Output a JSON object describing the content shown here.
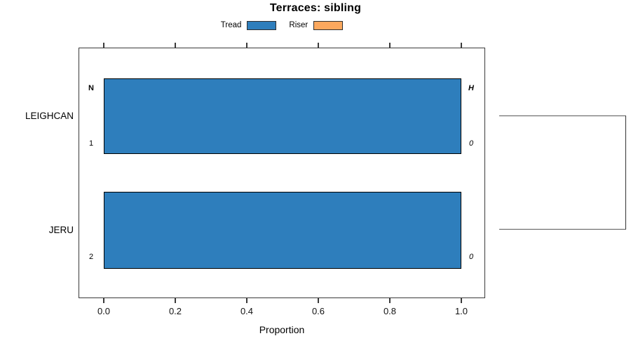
{
  "title": "Terraces: sibling",
  "legend": {
    "items": [
      {
        "label": "Tread",
        "color": "#2e7ebc"
      },
      {
        "label": "Riser",
        "color": "#fba85e"
      }
    ]
  },
  "colors": {
    "tread_blue": "#2e7ebc",
    "riser_orange": "#fba85e",
    "bar_border": "#000000",
    "axis": "#3a3a3a"
  },
  "chart_data": {
    "type": "bar",
    "orientation": "horizontal",
    "title": "Terraces: sibling",
    "xlabel": "Proportion",
    "ylabel": "",
    "categories": [
      "LEIGHCAN",
      "JERU"
    ],
    "series": [
      {
        "name": "Tread",
        "color": "#2e7ebc",
        "values": [
          1.0,
          1.0
        ]
      },
      {
        "name": "Riser",
        "color": "#fba85e",
        "values": [
          0.0,
          0.0
        ]
      }
    ],
    "xlim": [
      0.0,
      1.0
    ],
    "xticks": [
      "0.0",
      "0.2",
      "0.4",
      "0.6",
      "0.8",
      "1.0"
    ],
    "grid": false,
    "legend_position": "top-center",
    "bar_annotations": {
      "bar1": {
        "left_top": "N",
        "left_bottom": "1",
        "right_top": "H",
        "right_bottom": "0"
      },
      "bar2": {
        "left_bottom": "2",
        "right_bottom": "0"
      }
    },
    "sibling_bracket": "right-side bracket joining LEIGHCAN and JERU"
  }
}
